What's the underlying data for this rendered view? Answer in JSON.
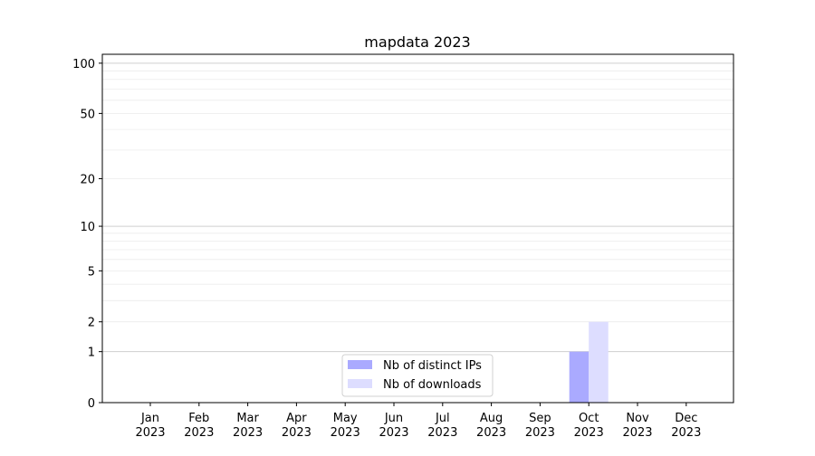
{
  "chart_data": {
    "type": "bar",
    "title": "mapdata 2023",
    "xlabel": "",
    "ylabel": "",
    "y_scale": "log(1+y)",
    "ylim": [
      0,
      113
    ],
    "yticks": [
      0,
      1,
      2,
      5,
      10,
      20,
      50,
      100
    ],
    "grid": true,
    "legend_position": "lower-center",
    "categories": [
      "Jan\n2023",
      "Feb\n2023",
      "Mar\n2023",
      "Apr\n2023",
      "May\n2023",
      "Jun\n2023",
      "Jul\n2023",
      "Aug\n2023",
      "Sep\n2023",
      "Oct\n2023",
      "Nov\n2023",
      "Dec\n2023"
    ],
    "series": [
      {
        "name": "Nb of distinct IPs",
        "color": "#aaaaff",
        "values": [
          0,
          0,
          0,
          0,
          0,
          0,
          0,
          0,
          0,
          1,
          0,
          0
        ]
      },
      {
        "name": "Nb of downloads",
        "color": "#ddddff",
        "values": [
          0,
          0,
          0,
          0,
          0,
          0,
          0,
          0,
          0,
          2,
          0,
          0
        ]
      }
    ]
  }
}
